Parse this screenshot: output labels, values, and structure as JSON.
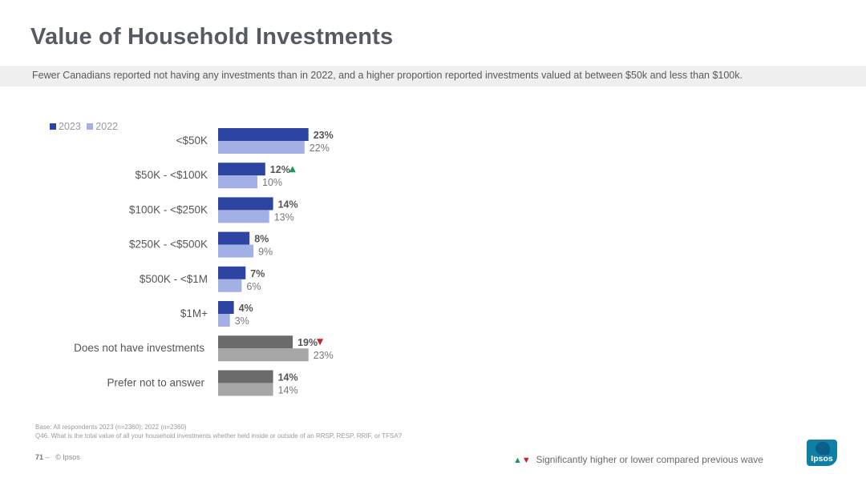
{
  "title": "Value of Household Investments",
  "subtitle": "Fewer Canadians reported not having any investments than in 2022, and a higher proportion reported investments valued at between $50k and less than $100k.",
  "footnotes": {
    "base": "Base: All respondents 2023 (n=2360); 2022 (n=2360)",
    "question": "Q46. What is the total value of all your household investments whether held inside or outside of an RRSP, RESP, RRIF, or TFSA?"
  },
  "footer": {
    "page_number": "71",
    "page_sep": "–",
    "copyright": "© Ipsos",
    "significance_note": "Significantly higher or lower compared previous wave",
    "up_marker": "▲",
    "down_marker": "▼",
    "logo_text": "Ipsos"
  },
  "colors": {
    "series_2023": "#2e44a2",
    "series_2022": "#a3b0e6",
    "special_2023": "#6b6b6b",
    "special_2022": "#a6a6a6",
    "sig_up": "#1a9a5a",
    "sig_down": "#cc1f2e"
  },
  "chart_data": {
    "type": "bar",
    "orientation": "horizontal",
    "categories": [
      "<$50K",
      "$50K - <$100K",
      "$100K - <$250K",
      "$250K - <$500K",
      "$500K - <$1M",
      "$1M+",
      "Does not have investments",
      "Prefer not to answer"
    ],
    "series": [
      {
        "name": "2023",
        "values": [
          23,
          12,
          14,
          8,
          7,
          4,
          19,
          14
        ]
      },
      {
        "name": "2022",
        "values": [
          22,
          10,
          13,
          9,
          6,
          3,
          23,
          14
        ]
      }
    ],
    "value_suffix": "%",
    "special_categories": [
      "Does not have investments",
      "Prefer not to answer"
    ],
    "significance": [
      null,
      "up",
      null,
      null,
      null,
      null,
      "down",
      null
    ],
    "legend_position": "top-left",
    "xlim": [
      0,
      100
    ],
    "grid": false
  }
}
